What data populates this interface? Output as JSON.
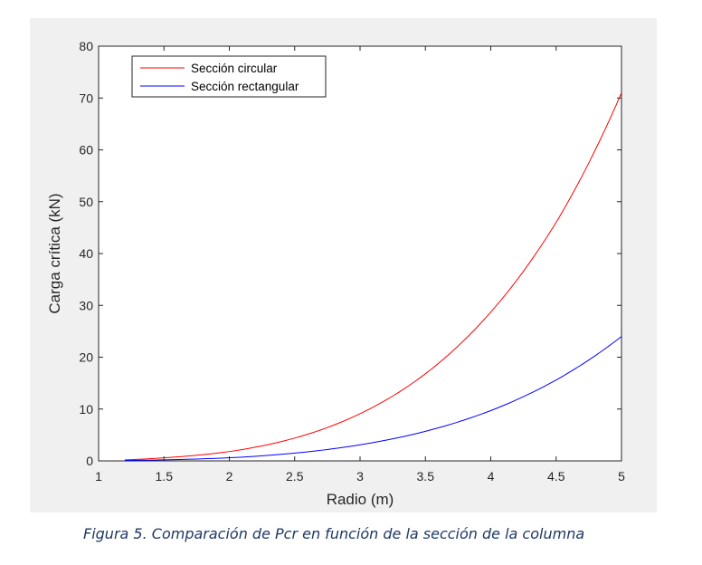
{
  "caption": "Figura 5. Comparación de Pcr en función de la sección de la columna",
  "chart_data": {
    "type": "line",
    "xlabel": "Radio (m)",
    "ylabel": "Carga crítica (kN)",
    "xlim": [
      1,
      5
    ],
    "ylim": [
      0,
      80
    ],
    "xticks": [
      1,
      1.5,
      2,
      2.5,
      3,
      3.5,
      4,
      4.5,
      5
    ],
    "xtick_labels": [
      "1",
      "1.5",
      "2",
      "2.5",
      "3",
      "3.5",
      "4",
      "4.5",
      "5"
    ],
    "yticks": [
      0,
      10,
      20,
      30,
      40,
      50,
      60,
      70,
      80
    ],
    "ytick_labels": [
      "0",
      "10",
      "20",
      "30",
      "40",
      "50",
      "60",
      "70",
      "80"
    ],
    "grid": false,
    "legend_position": "top-left",
    "series": [
      {
        "name": "Sección circular",
        "color": "#ff0000",
        "x": [
          1.2,
          1.5,
          2.0,
          2.5,
          3.0,
          3.5,
          4.0,
          4.5,
          5.0
        ],
        "values": [
          0.2,
          0.6,
          1.8,
          4.4,
          9.1,
          16.8,
          28.7,
          46.0,
          71.0
        ]
      },
      {
        "name": "Sección rectangular",
        "color": "#0000ff",
        "x": [
          1.2,
          1.5,
          2.0,
          2.5,
          3.0,
          3.5,
          4.0,
          4.5,
          5.0
        ],
        "values": [
          0.08,
          0.2,
          0.6,
          1.5,
          3.1,
          5.7,
          9.7,
          15.6,
          24.0
        ]
      }
    ]
  }
}
